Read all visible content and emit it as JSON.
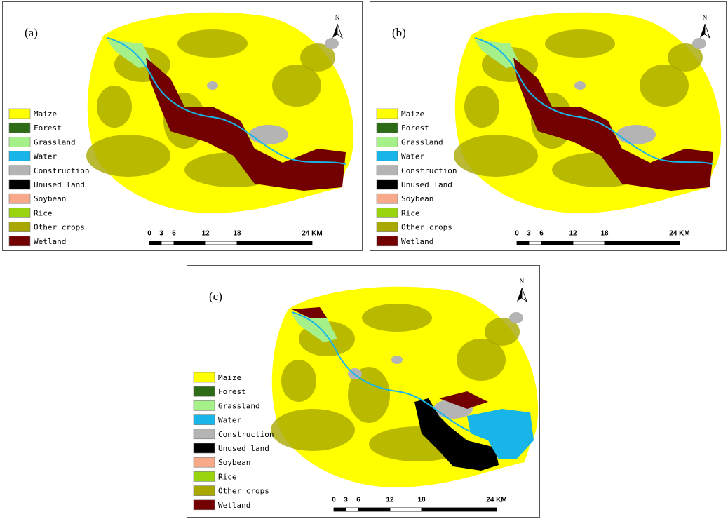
{
  "panels": [
    {
      "label": "(a)",
      "north": "N",
      "legend": [
        {
          "label": "Maize",
          "color": "#ffff00"
        },
        {
          "label": "Forest",
          "color": "#2e6b16"
        },
        {
          "label": "Grassland",
          "color": "#a6f08a"
        },
        {
          "label": "Water",
          "color": "#17b5e8"
        },
        {
          "label": "Construction",
          "color": "#b4b4b4"
        },
        {
          "label": "Unused land",
          "color": "#000000"
        },
        {
          "label": "Soybean",
          "color": "#f7a98a"
        },
        {
          "label": "Rice",
          "color": "#9ad40f"
        },
        {
          "label": "Other crops",
          "color": "#a8a800"
        },
        {
          "label": "Wetland",
          "color": "#730000"
        }
      ],
      "scale": [
        "0",
        "3",
        "6",
        "12",
        "18",
        "24 KM"
      ]
    },
    {
      "label": "(b)",
      "north": "N",
      "legend": [
        {
          "label": "Maize",
          "color": "#ffff00"
        },
        {
          "label": "Forest",
          "color": "#2e6b16"
        },
        {
          "label": "Grassland",
          "color": "#a6f08a"
        },
        {
          "label": "Water",
          "color": "#17b5e8"
        },
        {
          "label": "Construction",
          "color": "#b4b4b4"
        },
        {
          "label": "Unused land",
          "color": "#000000"
        },
        {
          "label": "Soybean",
          "color": "#f7a98a"
        },
        {
          "label": "Rice",
          "color": "#9ad40f"
        },
        {
          "label": "Other crops",
          "color": "#a8a800"
        },
        {
          "label": "Wetland",
          "color": "#730000"
        }
      ],
      "scale": [
        "0",
        "3",
        "6",
        "12",
        "18",
        "24 KM"
      ]
    },
    {
      "label": "(c)",
      "north": "N",
      "legend": [
        {
          "label": "Maize",
          "color": "#ffff00"
        },
        {
          "label": "Forest",
          "color": "#2e6b16"
        },
        {
          "label": "Grassland",
          "color": "#a6f08a"
        },
        {
          "label": "Water",
          "color": "#17b5e8"
        },
        {
          "label": "Construction",
          "color": "#b4b4b4"
        },
        {
          "label": "Unused land",
          "color": "#000000"
        },
        {
          "label": "Soybean",
          "color": "#f7a98a"
        },
        {
          "label": "Rice",
          "color": "#9ad40f"
        },
        {
          "label": "Other crops",
          "color": "#a8a800"
        },
        {
          "label": "Wetland",
          "color": "#730000"
        }
      ],
      "scale": [
        "0",
        "3",
        "6",
        "12",
        "18",
        "24 KM"
      ]
    }
  ]
}
